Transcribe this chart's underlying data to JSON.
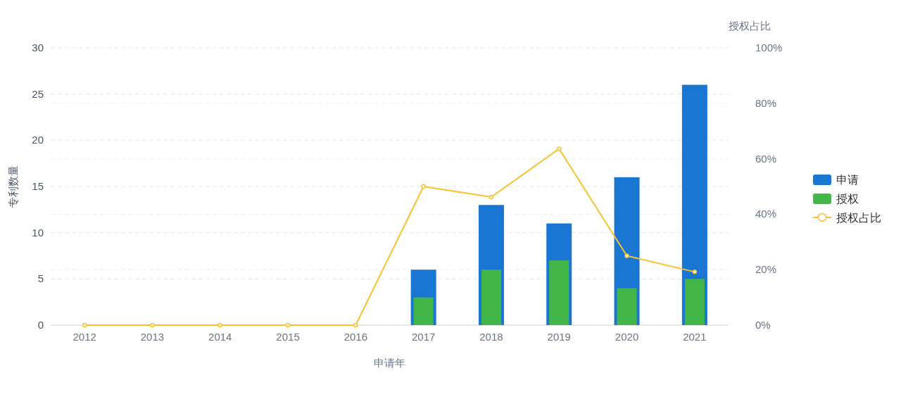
{
  "chart_data": {
    "type": "bar",
    "xlabel": "申请年",
    "ylabel": "专利数量",
    "y2label": "授权占比",
    "categories": [
      "2012",
      "2013",
      "2014",
      "2015",
      "2016",
      "2017",
      "2018",
      "2019",
      "2020",
      "2021"
    ],
    "series": [
      {
        "name": "申请",
        "color": "#1976d2",
        "values": [
          0,
          0,
          0,
          0,
          0,
          6,
          13,
          11,
          16,
          26
        ]
      },
      {
        "name": "授权",
        "color": "#43b649",
        "values": [
          0,
          0,
          0,
          0,
          0,
          3,
          6,
          7,
          4,
          5
        ]
      },
      {
        "name": "授权占比",
        "type": "line",
        "axis": "y2",
        "color": "#fbc02d",
        "marker": "circle",
        "values": [
          0,
          0,
          0,
          0,
          0,
          50,
          46.2,
          63.6,
          25,
          19.2
        ]
      }
    ],
    "ylim": [
      0,
      30
    ],
    "yticks": [
      0,
      5,
      10,
      15,
      20,
      25,
      30
    ],
    "y2lim": [
      0,
      100
    ],
    "y2ticks": [
      {
        "value": 0,
        "label": "0%"
      },
      {
        "value": 20,
        "label": "20%"
      },
      {
        "value": 40,
        "label": "40%"
      },
      {
        "value": 60,
        "label": "60%"
      },
      {
        "value": 80,
        "label": "80%"
      },
      {
        "value": 100,
        "label": "100%"
      }
    ],
    "grid": true,
    "legend": "right"
  }
}
